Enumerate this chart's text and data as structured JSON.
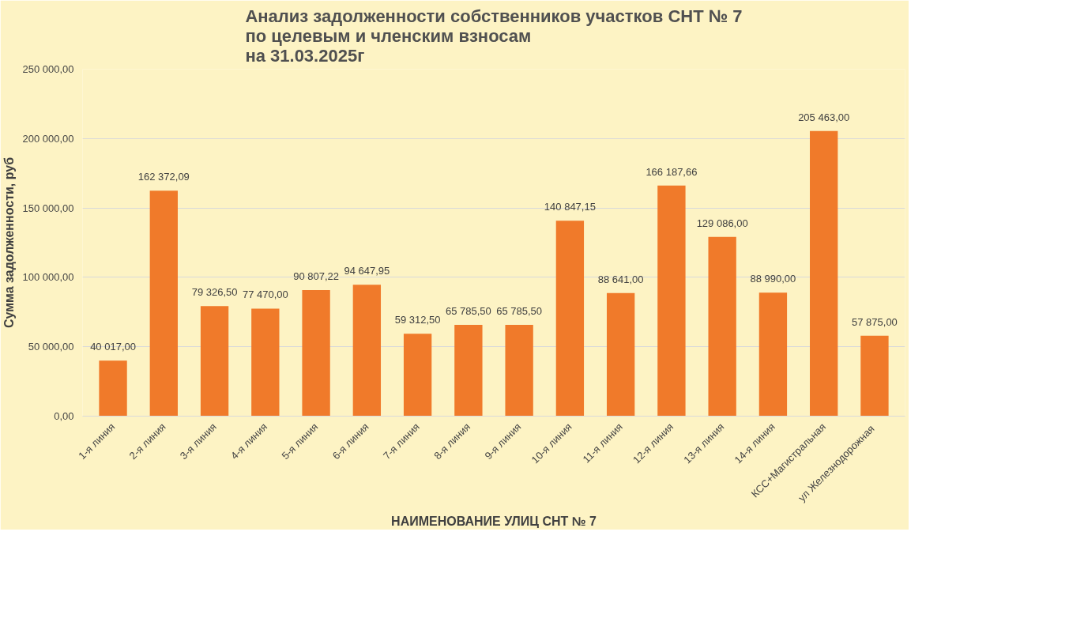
{
  "chart_data": {
    "type": "bar",
    "title": "Анализ задолженности собственников участков СНТ № 7\nпо целевым и членским взносам\nна 31.03.2025г",
    "xlabel": "НАИМЕНОВАНИЕ УЛИЦ СНТ № 7",
    "ylabel": "Сумма задолженности, руб",
    "categories": [
      "1-я линия",
      "2-я линия",
      "3-я линия",
      "4-я линия",
      "5-я линия",
      "6-я линия",
      "7-я линия",
      "8-я линия",
      "9-я линия",
      "10-я линия",
      "11-я линия",
      "12-я линия",
      "13-я линия",
      "14-я линия",
      "КСС+Магистральная",
      "ул  Железнодорожная"
    ],
    "values": [
      40017.0,
      162372.09,
      79326.5,
      77470.0,
      90807.22,
      94647.95,
      59312.5,
      65785.5,
      65785.5,
      140847.15,
      88641.0,
      166187.66,
      129086.0,
      88990.0,
      205463.0,
      57875.0
    ],
    "value_labels": [
      "40 017,00",
      "162 372,09",
      "79 326,50",
      "77 470,00",
      "90 807,22",
      "94 647,95",
      "59 312,50",
      "65 785,50",
      "65 785,50",
      "140 847,15",
      "88 641,00",
      "166 187,66",
      "129 086,00",
      "88 990,00",
      "205 463,00",
      "57 875,00"
    ],
    "color": "#f07a2a",
    "ylim": [
      0,
      250000
    ],
    "yticks": [
      {
        "value": 0,
        "label": "0,00"
      },
      {
        "value": 50000,
        "label": "50 000,00"
      },
      {
        "value": 100000,
        "label": "100 000,00"
      },
      {
        "value": 150000,
        "label": "150 000,00"
      },
      {
        "value": 200000,
        "label": "200 000,00"
      },
      {
        "value": 250000,
        "label": "250 000,00"
      }
    ],
    "grid": "y"
  }
}
